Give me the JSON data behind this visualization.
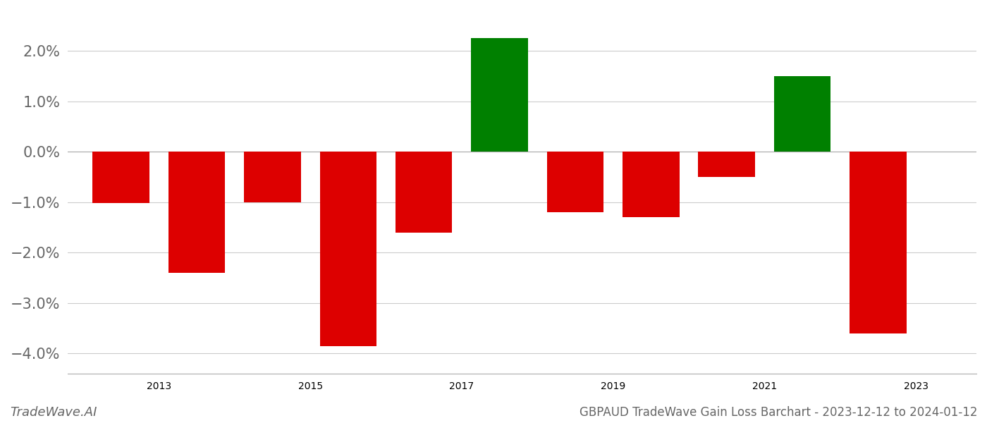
{
  "x_positions": [
    2012.5,
    2013.5,
    2014.5,
    2015.5,
    2016.5,
    2017.5,
    2018.5,
    2019.5,
    2020.5,
    2021.5,
    2022.5
  ],
  "values": [
    -0.0102,
    -0.024,
    -0.01,
    -0.0385,
    -0.016,
    0.0225,
    -0.012,
    -0.013,
    -0.005,
    0.015,
    -0.036
  ],
  "colors": [
    "#dd0000",
    "#dd0000",
    "#dd0000",
    "#dd0000",
    "#dd0000",
    "#008000",
    "#dd0000",
    "#dd0000",
    "#dd0000",
    "#008000",
    "#dd0000"
  ],
  "bar_width": 0.75,
  "xlim": [
    2011.8,
    2023.8
  ],
  "ylim": [
    -0.044,
    0.028
  ],
  "xticks": [
    2013,
    2015,
    2017,
    2019,
    2021,
    2023
  ],
  "ytick_values": [
    -0.04,
    -0.03,
    -0.02,
    -0.01,
    0.0,
    0.01,
    0.02
  ],
  "ytick_labels": [
    "−4.0%",
    "−3.0%",
    "−2.0%",
    "−1.0%",
    "0.0%",
    "1.0%",
    "2.0%"
  ],
  "footer_left": "TradeWave.AI",
  "footer_right": "GBPAUD TradeWave Gain Loss Barchart - 2023-12-12 to 2024-01-12",
  "grid_color": "#cccccc",
  "background_color": "#ffffff",
  "spine_color": "#aaaaaa",
  "tick_color": "#666666",
  "tick_fontsize": 15
}
